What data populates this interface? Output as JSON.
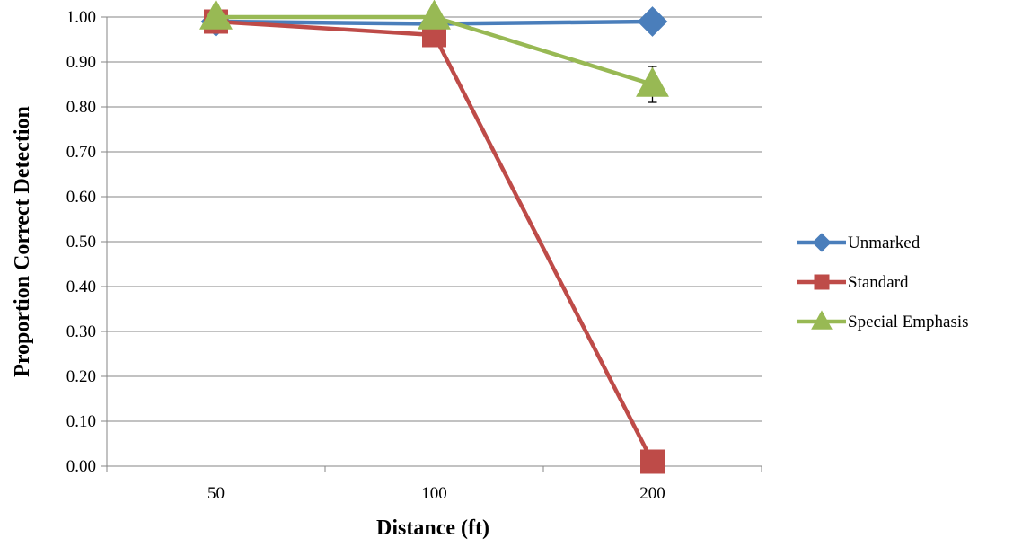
{
  "chart_data": {
    "type": "line",
    "xlabel": "Distance (ft)",
    "ylabel": "Proportion Correct Detection",
    "categories": [
      "50",
      "100",
      "200"
    ],
    "ylim": [
      0,
      1
    ],
    "y_ticks": [
      "0.00",
      "0.10",
      "0.20",
      "0.30",
      "0.40",
      "0.50",
      "0.60",
      "0.70",
      "0.80",
      "0.90",
      "1.00"
    ],
    "grid": true,
    "legend_position": "right",
    "series": [
      {
        "name": "Unmarked",
        "values": [
          0.99,
          0.985,
          0.99
        ],
        "color": "#4a7ebb",
        "marker": "diamond"
      },
      {
        "name": "Standard",
        "values": [
          0.99,
          0.96,
          0.01
        ],
        "color": "#be4b48",
        "marker": "square"
      },
      {
        "name": "Special Emphasis",
        "values": [
          1.0,
          1.0,
          0.85
        ],
        "color": "#98b954",
        "marker": "triangle",
        "error_bars": [
          null,
          null,
          [
            0.81,
            0.89
          ]
        ]
      }
    ]
  }
}
